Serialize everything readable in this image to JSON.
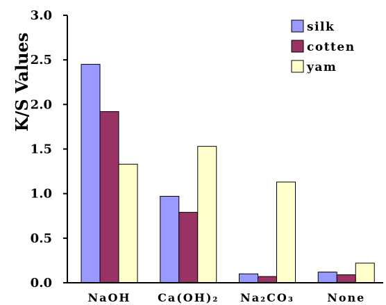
{
  "chart_data": {
    "type": "bar",
    "ylabel": "K/S Values",
    "xlabel": "",
    "ylim": [
      0,
      3.0
    ],
    "yticks": [
      "0.0",
      "0.5",
      "1.0",
      "1.5",
      "2.0",
      "2.5",
      "3.0"
    ],
    "categories": [
      "NaOH",
      "Ca(OH)₂",
      "Na₂CO₃",
      "None"
    ],
    "series": [
      {
        "name": "silk",
        "values": [
          2.45,
          0.97,
          0.1,
          0.12
        ],
        "color": "#9999ff"
      },
      {
        "name": "cotten",
        "values": [
          1.92,
          0.79,
          0.07,
          0.09
        ],
        "color": "#993366"
      },
      {
        "name": "yam",
        "values": [
          1.33,
          1.53,
          1.13,
          0.22
        ],
        "color": "#ffffcc"
      }
    ],
    "legend_position": "top-right",
    "grid": false
  }
}
